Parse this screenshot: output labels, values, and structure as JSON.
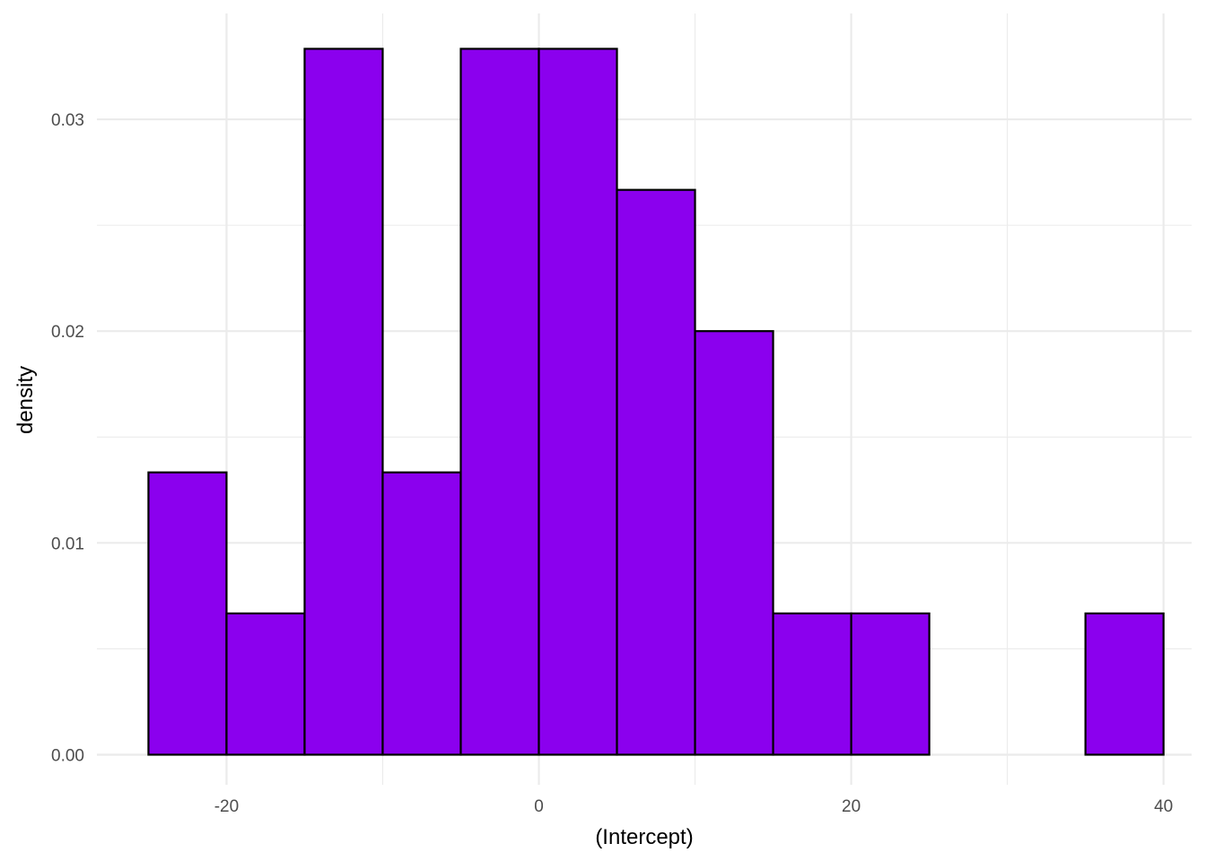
{
  "chart_data": {
    "type": "bar",
    "subtype": "histogram",
    "xlabel": "(Intercept)",
    "ylabel": "density",
    "xlim": [
      -28.3,
      41.8
    ],
    "ylim": [
      -0.00142,
      0.035
    ],
    "x_ticks": [
      -20,
      0,
      20,
      40
    ],
    "x_tick_labels": [
      "-20",
      "0",
      "20",
      "40"
    ],
    "y_ticks": [
      0.0,
      0.01,
      0.02,
      0.03
    ],
    "y_tick_labels": [
      "0.00",
      "0.01",
      "0.02",
      "0.03"
    ],
    "x_minor_ticks": [
      -10,
      10,
      30
    ],
    "y_minor_ticks": [
      0.005,
      0.015,
      0.025
    ],
    "bin_width": 5,
    "bins": [
      {
        "x0": -25,
        "x1": -20,
        "density": 0.01333
      },
      {
        "x0": -20,
        "x1": -15,
        "density": 0.00667
      },
      {
        "x0": -15,
        "x1": -10,
        "density": 0.03333
      },
      {
        "x0": -10,
        "x1": -5,
        "density": 0.01333
      },
      {
        "x0": -5,
        "x1": 0,
        "density": 0.03333
      },
      {
        "x0": 0,
        "x1": 5,
        "density": 0.03333
      },
      {
        "x0": 5,
        "x1": 10,
        "density": 0.02667
      },
      {
        "x0": 10,
        "x1": 15,
        "density": 0.02
      },
      {
        "x0": 15,
        "x1": 20,
        "density": 0.00667
      },
      {
        "x0": 20,
        "x1": 25,
        "density": 0.00667
      },
      {
        "x0": 25,
        "x1": 30,
        "density": 0.0
      },
      {
        "x0": 30,
        "x1": 35,
        "density": 0.0
      },
      {
        "x0": 35,
        "x1": 40,
        "density": 0.00667
      }
    ],
    "grid": true,
    "legend": "none",
    "colors": {
      "fill": "#8B00EE",
      "outline": "#000000",
      "grid": "#EBEBEB",
      "tick_text": "#4D4D4D"
    }
  }
}
